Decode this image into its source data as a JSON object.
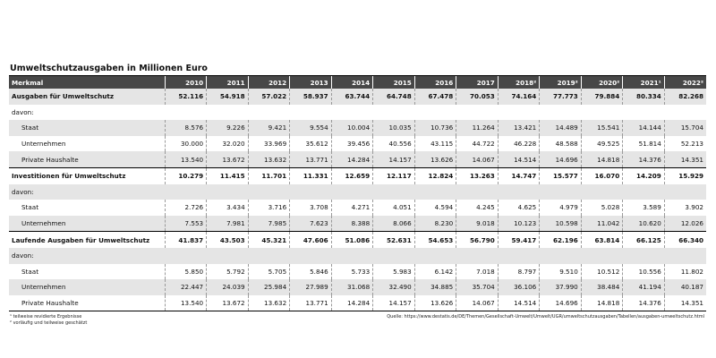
{
  "title": "Umweltschutzausgaben in Millionen Euro",
  "headers": [
    "Merkmal",
    "2010",
    "2011",
    "2012",
    "2013",
    "2014",
    "2015",
    "2016",
    "2017",
    "2018²",
    "2019²",
    "2020²",
    "2021¹",
    "2022²"
  ],
  "rows": [
    {
      "label": "Ausgaben für Umweltschutz",
      "kind": "total",
      "values": [
        "52.116",
        "54.918",
        "57.022",
        "58.937",
        "63.744",
        "64.748",
        "67.478",
        "70.053",
        "74.164",
        "77.773",
        "79.884",
        "80.334",
        "82.268"
      ]
    },
    {
      "label": "davon:",
      "kind": "davon"
    },
    {
      "label": "Staat",
      "kind": "sub",
      "values": [
        "8.576",
        "9.226",
        "9.421",
        "9.554",
        "10.004",
        "10.035",
        "10.736",
        "11.264",
        "13.421",
        "14.489",
        "15.541",
        "14.144",
        "15.704"
      ]
    },
    {
      "label": "Unternehmen",
      "kind": "sub",
      "values": [
        "30.000",
        "32.020",
        "33.969",
        "35.612",
        "39.456",
        "40.556",
        "43.115",
        "44.722",
        "46.228",
        "48.588",
        "49.525",
        "51.814",
        "52.213"
      ]
    },
    {
      "label": "Private Haushalte",
      "kind": "sub",
      "values": [
        "13.540",
        "13.672",
        "13.632",
        "13.771",
        "14.284",
        "14.157",
        "13.626",
        "14.067",
        "14.514",
        "14.696",
        "14.818",
        "14.376",
        "14.351"
      ]
    },
    {
      "label": "Investitionen für Umweltschutz",
      "kind": "total",
      "values": [
        "10.279",
        "11.415",
        "11.701",
        "11.331",
        "12.659",
        "12.117",
        "12.824",
        "13.263",
        "14.747",
        "15.577",
        "16.070",
        "14.209",
        "15.929"
      ]
    },
    {
      "label": "davon:",
      "kind": "davon"
    },
    {
      "label": "Staat",
      "kind": "sub",
      "values": [
        "2.726",
        "3.434",
        "3.716",
        "3.708",
        "4.271",
        "4.051",
        "4.594",
        "4.245",
        "4.625",
        "4.979",
        "5.028",
        "3.589",
        "3.902"
      ]
    },
    {
      "label": "Unternehmen",
      "kind": "sub",
      "values": [
        "7.553",
        "7.981",
        "7.985",
        "7.623",
        "8.388",
        "8.066",
        "8.230",
        "9.018",
        "10.123",
        "10.598",
        "11.042",
        "10.620",
        "12.026"
      ]
    },
    {
      "label": "Laufende Ausgaben für Umweltschutz",
      "kind": "total",
      "values": [
        "41.837",
        "43.503",
        "45.321",
        "47.606",
        "51.086",
        "52.631",
        "54.653",
        "56.790",
        "59.417",
        "62.196",
        "63.814",
        "66.125",
        "66.340"
      ]
    },
    {
      "label": "davon:",
      "kind": "davon"
    },
    {
      "label": "Staat",
      "kind": "sub",
      "values": [
        "5.850",
        "5.792",
        "5.705",
        "5.846",
        "5.733",
        "5.983",
        "6.142",
        "7.018",
        "8.797",
        "9.510",
        "10.512",
        "10.556",
        "11.802"
      ]
    },
    {
      "label": "Unternehmen",
      "kind": "sub",
      "values": [
        "22.447",
        "24.039",
        "25.984",
        "27.989",
        "31.068",
        "32.490",
        "34.885",
        "35.704",
        "36.106",
        "37.990",
        "38.484",
        "41.194",
        "40.187"
      ]
    },
    {
      "label": "Private Haushalte",
      "kind": "sub",
      "values": [
        "13.540",
        "13.672",
        "13.632",
        "13.771",
        "14.284",
        "14.157",
        "13.626",
        "14.067",
        "14.514",
        "14.696",
        "14.818",
        "14.376",
        "14.351"
      ]
    }
  ],
  "footnotes": [
    "¹ teilweise revidierte Ergebnisse",
    "² vorläufig und teilweise geschätzt"
  ],
  "source": "Quelle: https://www.destatis.de/DE/Themen/Gesellschaft-Umwelt/Umwelt/UGR/umweltschutzausgaben/Tabellen/ausgaben-umweltschutz.html"
}
